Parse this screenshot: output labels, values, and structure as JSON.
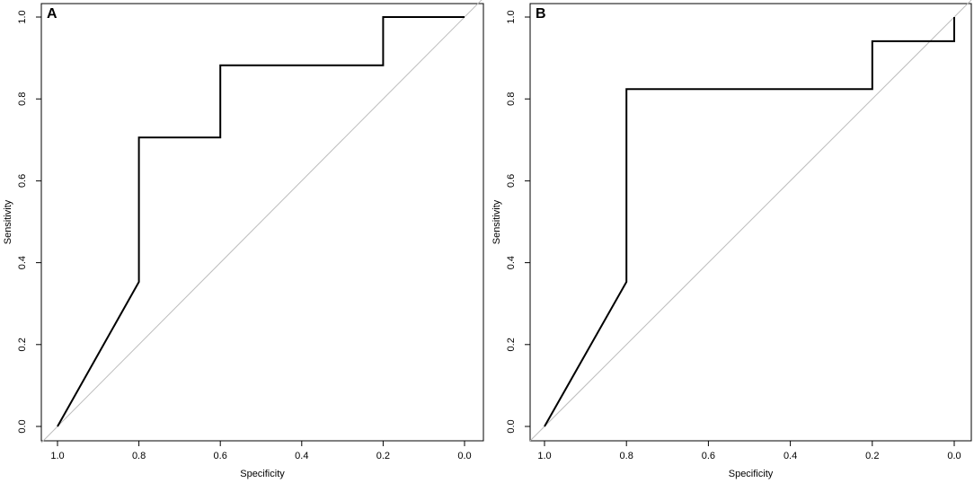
{
  "chart_data": [
    {
      "type": "line",
      "panel_label": "A",
      "xlabel": "Specificity",
      "ylabel": "Sensitivity",
      "x_reversed": true,
      "xlim": [
        1.0,
        0.0
      ],
      "ylim": [
        0.0,
        1.0
      ],
      "xticks": [
        "1.0",
        "0.8",
        "0.6",
        "0.4",
        "0.2",
        "0.0"
      ],
      "yticks": [
        "0.0",
        "0.2",
        "0.4",
        "0.6",
        "0.8",
        "1.0"
      ],
      "grid": false,
      "series": [
        {
          "x": [
            1.0,
            0.8,
            0.8,
            0.6,
            0.6,
            0.2,
            0.2,
            0.0
          ],
          "y": [
            0.0,
            0.353,
            0.706,
            0.706,
            0.882,
            0.882,
            1.0,
            1.0
          ],
          "color": "#000000"
        }
      ],
      "reference_line": {
        "x": [
          1.0,
          0.0
        ],
        "y": [
          0.0,
          1.0
        ],
        "color": "#bdbdbd"
      }
    },
    {
      "type": "line",
      "panel_label": "B",
      "xlabel": "Specificity",
      "ylabel": "Sensitivity",
      "x_reversed": true,
      "xlim": [
        1.0,
        0.0
      ],
      "ylim": [
        0.0,
        1.0
      ],
      "xticks": [
        "1.0",
        "0.8",
        "0.6",
        "0.4",
        "0.2",
        "0.0"
      ],
      "yticks": [
        "0.0",
        "0.2",
        "0.4",
        "0.6",
        "0.8",
        "1.0"
      ],
      "grid": false,
      "series": [
        {
          "x": [
            1.0,
            0.8,
            0.8,
            0.2,
            0.2,
            0.0,
            0.0
          ],
          "y": [
            0.0,
            0.353,
            0.824,
            0.824,
            0.941,
            0.941,
            1.0
          ],
          "color": "#000000"
        }
      ],
      "reference_line": {
        "x": [
          1.0,
          0.0
        ],
        "y": [
          0.0,
          1.0
        ],
        "color": "#bdbdbd"
      }
    }
  ]
}
